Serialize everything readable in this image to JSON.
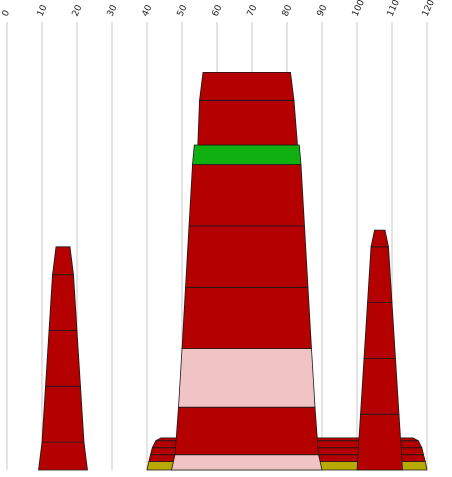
{
  "chart_data": {
    "type": "stacked-trapezoid",
    "title": "",
    "xlabel": "",
    "ylabel": "",
    "xlim": [
      0,
      120
    ],
    "x_ticks": [
      "0",
      "10",
      "20",
      "30",
      "40",
      "50",
      "60",
      "70",
      "80",
      "90",
      "100",
      "110",
      "120"
    ],
    "grid": "vertical",
    "legend": "none",
    "colors": {
      "red": "#b50000",
      "green": "#10b010",
      "pink": "#f0c4c4",
      "olive": "#b8aa00",
      "outline": "#1a1a1a"
    },
    "stacks": [
      {
        "name": "",
        "segments": [
          {
            "left": 9.0,
            "right": 23.0,
            "top_left": 10.0,
            "top_right": 22.0,
            "levels": 1,
            "color": "red"
          },
          {
            "left": 10.0,
            "right": 22.0,
            "top_left": 11.0,
            "top_right": 21.0,
            "levels": 2,
            "color": "red"
          },
          {
            "left": 11.0,
            "right": 21.0,
            "top_left": 12.0,
            "top_right": 20.0,
            "levels": 2,
            "color": "red"
          },
          {
            "left": 12.0,
            "right": 20.0,
            "top_left": 13.0,
            "top_right": 19.0,
            "levels": 2,
            "color": "red"
          },
          {
            "left": 13.0,
            "right": 19.0,
            "top_left": 14.0,
            "top_right": 18.0,
            "levels": 1,
            "color": "red"
          }
        ]
      },
      {
        "name": "",
        "segments": [
          {
            "left": 40.0,
            "right": 120.0,
            "top_left": 40.5,
            "top_right": 119.5,
            "levels": 0.3,
            "color": "olive"
          },
          {
            "left": 40.5,
            "right": 119.5,
            "top_left": 41.0,
            "top_right": 119.0,
            "levels": 0.25,
            "color": "red"
          },
          {
            "left": 41.0,
            "right": 119.0,
            "top_left": 41.5,
            "top_right": 118.5,
            "levels": 0.25,
            "color": "red"
          },
          {
            "left": 41.5,
            "right": 118.5,
            "top_left": 42.5,
            "top_right": 117.5,
            "levels": 0.25,
            "color": "red"
          },
          {
            "left": 42.5,
            "right": 117.5,
            "top_left": 44.0,
            "top_right": 116.0,
            "levels": 0.1,
            "color": "red"
          }
        ]
      },
      {
        "name": "",
        "segments": [
          {
            "left": 47.0,
            "right": 90.0,
            "top_left": 48.0,
            "top_right": 89.0,
            "levels": 0.55,
            "color": "pink"
          },
          {
            "left": 48.0,
            "right": 89.0,
            "top_left": 49.0,
            "top_right": 88.0,
            "levels": 1.7,
            "color": "red"
          },
          {
            "left": 49.0,
            "right": 88.0,
            "top_left": 50.0,
            "top_right": 87.0,
            "levels": 2.1,
            "color": "pink"
          },
          {
            "left": 50.0,
            "right": 87.0,
            "top_left": 51.0,
            "top_right": 86.0,
            "levels": 2.2,
            "color": "red"
          },
          {
            "left": 51.0,
            "right": 86.0,
            "top_left": 52.0,
            "top_right": 85.0,
            "levels": 2.2,
            "color": "red"
          },
          {
            "left": 52.0,
            "right": 85.0,
            "top_left": 53.0,
            "top_right": 84.0,
            "levels": 2.2,
            "color": "red"
          },
          {
            "left": 53.0,
            "right": 84.0,
            "top_left": 53.5,
            "top_right": 83.5,
            "levels": 0.7,
            "color": "green"
          },
          {
            "left": 54.5,
            "right": 83.0,
            "top_left": 55.0,
            "top_right": 82.0,
            "levels": 1.6,
            "color": "red"
          },
          {
            "left": 55.0,
            "right": 82.0,
            "top_left": 56.0,
            "top_right": 81.0,
            "levels": 1.0,
            "color": "red"
          }
        ]
      },
      {
        "name": "",
        "segments": [
          {
            "left": 100.0,
            "right": 113.0,
            "top_left": 101.0,
            "top_right": 112.0,
            "levels": 2.0,
            "color": "red"
          },
          {
            "left": 101.0,
            "right": 112.0,
            "top_left": 102.0,
            "top_right": 111.0,
            "levels": 2.0,
            "color": "red"
          },
          {
            "left": 102.0,
            "right": 111.0,
            "top_left": 103.0,
            "top_right": 110.0,
            "levels": 2.0,
            "color": "red"
          },
          {
            "left": 103.0,
            "right": 110.0,
            "top_left": 104.0,
            "top_right": 109.0,
            "levels": 2.0,
            "color": "red"
          },
          {
            "left": 104.0,
            "right": 109.0,
            "top_left": 105.0,
            "top_right": 108.0,
            "levels": 0.6,
            "color": "red"
          }
        ]
      }
    ]
  }
}
